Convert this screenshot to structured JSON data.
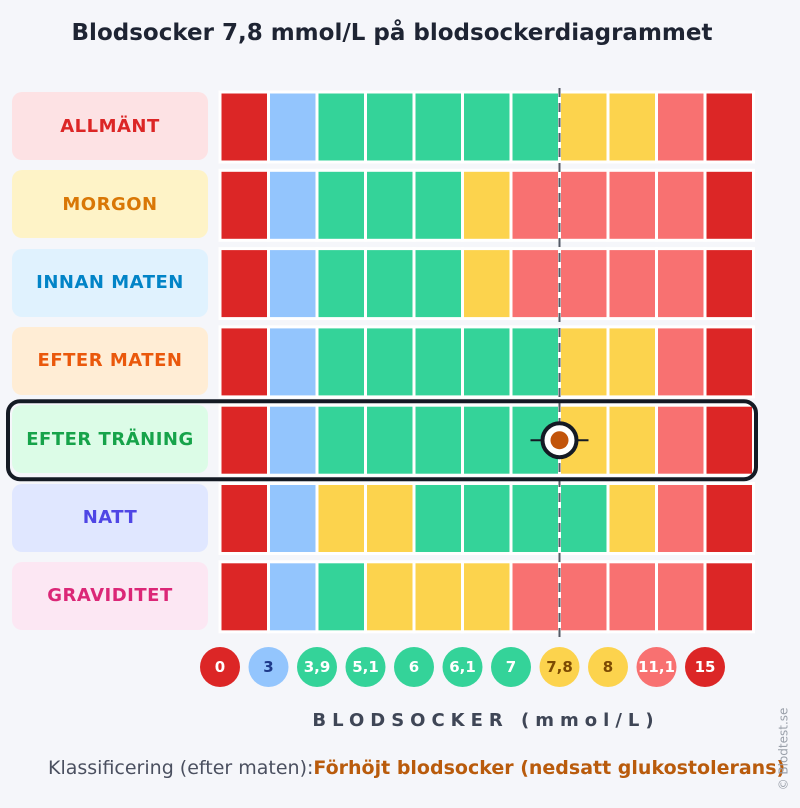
{
  "title": "Blodsocker 7,8 mmol/L på blodsockerdiagrammet",
  "colors": {
    "dark_red": "#dc2626",
    "blue": "#93c5fd",
    "green": "#34d399",
    "yellow": "#fcd34d",
    "light_red": "#f87171"
  },
  "chart_data": {
    "type": "table",
    "x_ticks": [
      "0",
      "3",
      "3,9",
      "5,1",
      "6",
      "6,1",
      "7",
      "7,8",
      "8",
      "11,1",
      "15"
    ],
    "x_tick_colors": [
      "dark_red",
      "blue",
      "green",
      "green",
      "green",
      "green",
      "green",
      "yellow",
      "yellow",
      "light_red",
      "dark_red"
    ],
    "xlabel": "BLODSOCKER (mmol/L)",
    "marker_value": "7,8",
    "highlighted_row": "EFTER TRÄNING",
    "rows": [
      {
        "label": "ALLMÄNT",
        "text_color": "#dc2626",
        "bg_color": "#fde2e4",
        "cells": [
          "dark_red",
          "blue",
          "green",
          "green",
          "green",
          "green",
          "green",
          "yellow",
          "yellow",
          "light_red",
          "dark_red"
        ]
      },
      {
        "label": "MORGON",
        "text_color": "#d97706",
        "bg_color": "#fef3c7",
        "cells": [
          "dark_red",
          "blue",
          "green",
          "green",
          "green",
          "yellow",
          "light_red",
          "light_red",
          "light_red",
          "light_red",
          "dark_red"
        ]
      },
      {
        "label": "INNAN MATEN",
        "text_color": "#0284c7",
        "bg_color": "#e0f2fe",
        "cells": [
          "dark_red",
          "blue",
          "green",
          "green",
          "green",
          "yellow",
          "light_red",
          "light_red",
          "light_red",
          "light_red",
          "dark_red"
        ]
      },
      {
        "label": "EFTER MATEN",
        "text_color": "#ea580c",
        "bg_color": "#ffedd5",
        "cells": [
          "dark_red",
          "blue",
          "green",
          "green",
          "green",
          "green",
          "green",
          "yellow",
          "yellow",
          "light_red",
          "dark_red"
        ]
      },
      {
        "label": "EFTER TRÄNING",
        "text_color": "#16a34a",
        "bg_color": "#dcfce7",
        "cells": [
          "dark_red",
          "blue",
          "green",
          "green",
          "green",
          "green",
          "green",
          "yellow",
          "yellow",
          "light_red",
          "dark_red"
        ]
      },
      {
        "label": "NATT",
        "text_color": "#4f46e5",
        "bg_color": "#e0e7ff",
        "cells": [
          "dark_red",
          "blue",
          "yellow",
          "yellow",
          "green",
          "green",
          "green",
          "green",
          "yellow",
          "light_red",
          "dark_red"
        ]
      },
      {
        "label": "GRAVIDITET",
        "text_color": "#db2777",
        "bg_color": "#fce7f3",
        "cells": [
          "dark_red",
          "blue",
          "green",
          "yellow",
          "yellow",
          "yellow",
          "light_red",
          "light_red",
          "light_red",
          "light_red",
          "dark_red"
        ]
      }
    ]
  },
  "classification": {
    "label": "Klassificering (efter maten):",
    "value": "Förhöjt blodsocker (nedsatt glukostolerans)"
  },
  "copyright": "© Blodtest.se"
}
